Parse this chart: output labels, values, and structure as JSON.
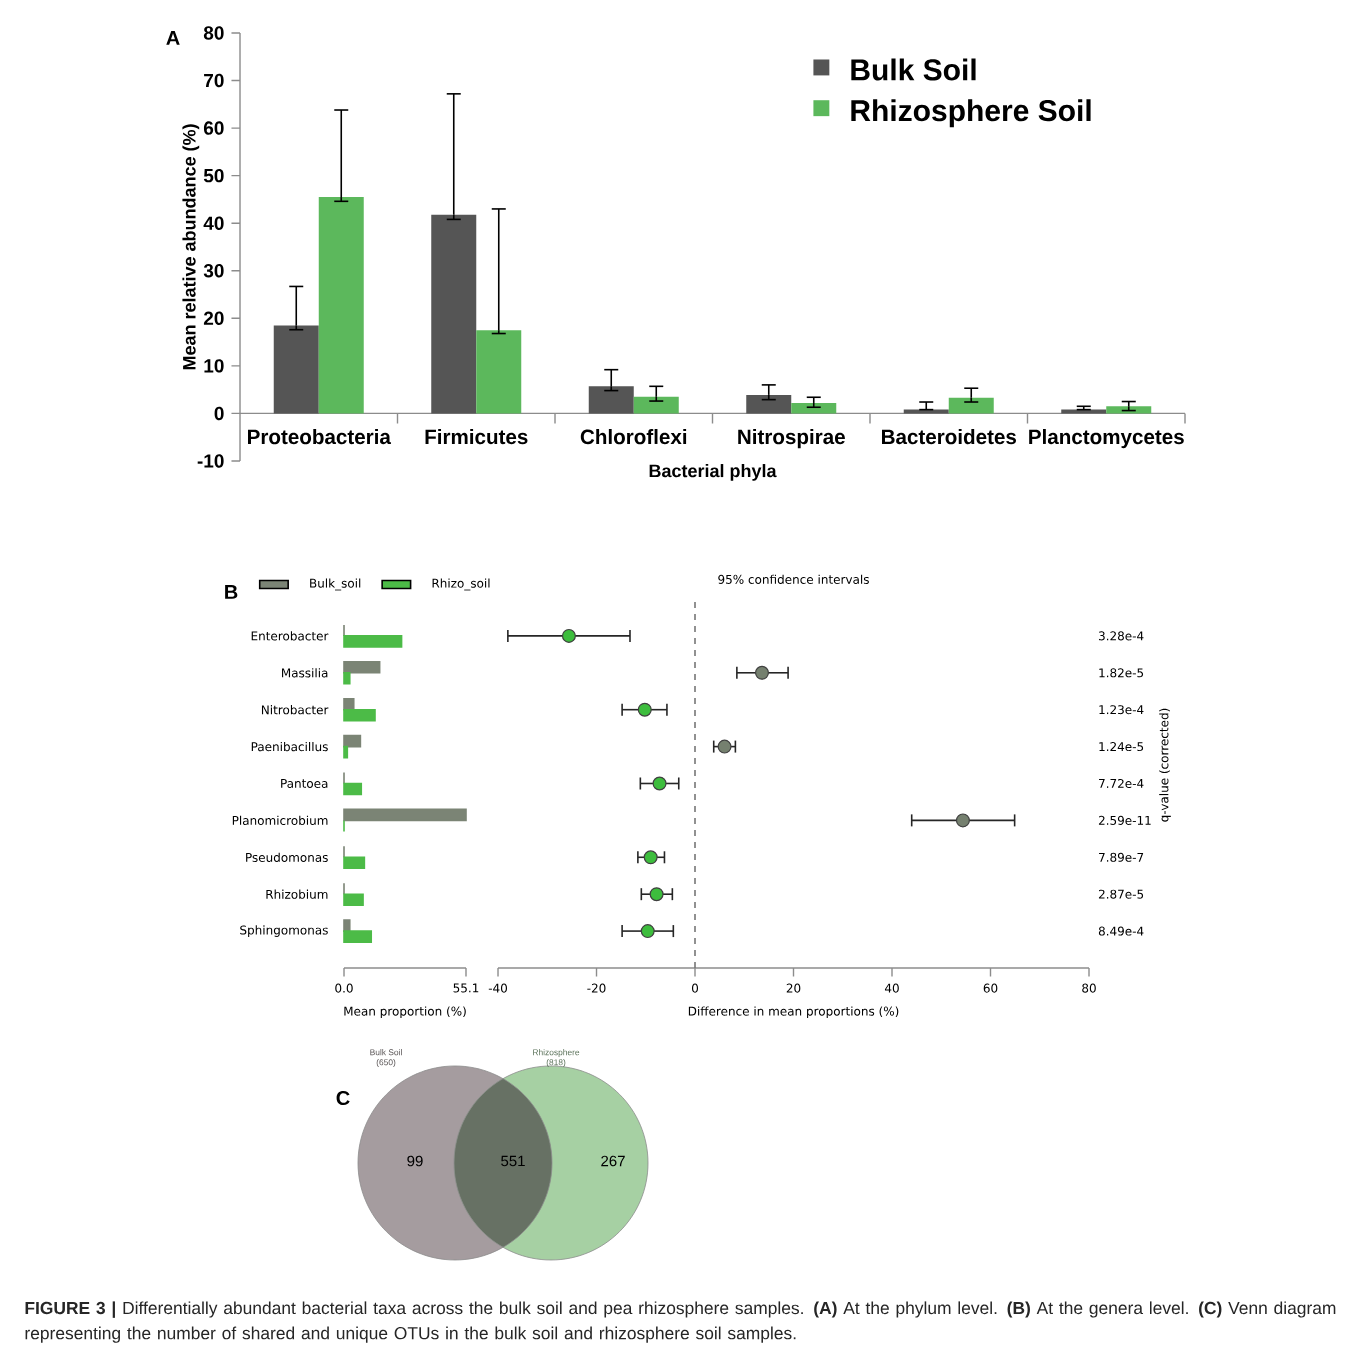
{
  "chart_data": [
    {
      "type": "bar",
      "xlabel": "Bacterial phyla",
      "ylabel": "Mean relative abundance (%)",
      "categories": [
        "Proteobacteria",
        "Firmicutes",
        "Chloroflexi",
        "Nitrospirae",
        "Bacteroidetes",
        "Planctomycetes"
      ],
      "ylim": [
        -10,
        80
      ],
      "yticks": [
        -10,
        0,
        10,
        20,
        30,
        40,
        50,
        60,
        70,
        80
      ],
      "legend": "top right",
      "annotations": [
        "A"
      ],
      "series": [
        {
          "name": "Bulk Soil",
          "color": "#555555",
          "values": [
            18.5,
            41.8,
            5.7,
            3.9,
            0.8,
            0.8
          ],
          "errors": [
            [
              17.6,
              26.7
            ],
            [
              40.8,
              67.2
            ],
            [
              4.8,
              9.2
            ],
            [
              2.9,
              6.0
            ],
            [
              0.8,
              2.4
            ],
            [
              0.8,
              1.5
            ]
          ]
        },
        {
          "name": "Rhizosphere Soil",
          "color": "#5cb85c",
          "values": [
            45.5,
            17.5,
            3.5,
            2.2,
            3.3,
            1.5
          ],
          "errors": [
            [
              44.6,
              63.8
            ],
            [
              16.8,
              43.0
            ],
            [
              2.6,
              5.7
            ],
            [
              1.3,
              3.4
            ],
            [
              2.4,
              5.3
            ],
            [
              0.6,
              2.5
            ]
          ]
        }
      ]
    },
    {
      "type": "bar",
      "orientation": "horizontal",
      "xlabel": "Mean proportion (%)",
      "categories": [
        "Enterobacter",
        "Massilia",
        "Nitrobacter",
        "Paenibacillus",
        "Pantoea",
        "Planomicrobium",
        "Pseudomonas",
        "Rhizobium",
        "Sphingomonas"
      ],
      "xlim": [
        0,
        55.1
      ],
      "xticks": [
        {
          "value": 0,
          "label": "0.0"
        },
        55.1
      ],
      "legend": "top left",
      "annotations": [
        "B"
      ],
      "series": [
        {
          "name": "Bulk_soil",
          "color": "#7b8475",
          "values": [
            0,
            16.1,
            4.4,
            7.4,
            0,
            55.1,
            0,
            0,
            2.6
          ]
        },
        {
          "name": "Rhizo_soil",
          "color": "#4cbb47",
          "values": [
            26.0,
            2.6,
            14.0,
            1.5,
            7.8,
            0,
            9.2,
            8.6,
            12.3
          ]
        }
      ]
    },
    {
      "type": "scatter",
      "orientation": "horizontal",
      "title": "95% confidence intervals",
      "xlabel": "Difference in mean proportions (%)",
      "y2label": "q-value (corrected)",
      "categories": [
        null,
        null,
        null,
        null,
        null,
        null,
        null,
        null,
        null
      ],
      "xlim": [
        -40,
        80
      ],
      "xticks": [
        -40,
        -20,
        0,
        20,
        40,
        60,
        80
      ],
      "marker": "circle",
      "values": [
        -25.6,
        13.6,
        -10.2,
        6.0,
        -7.2,
        54.4,
        -9.0,
        -7.8,
        -9.6
      ],
      "errors": [
        [
          -38.0,
          -13.2
        ],
        [
          8.5,
          18.9
        ],
        [
          -14.8,
          -5.7
        ],
        [
          3.8,
          8.2
        ],
        [
          -11.1,
          -3.3
        ],
        [
          44.0,
          64.9
        ],
        [
          -11.6,
          -6.2
        ],
        [
          -10.9,
          -4.6
        ],
        [
          -14.8,
          -4.4
        ]
      ],
      "colors": [
        "#3dbd3d",
        "#75806f",
        "#3dbd3d",
        "#75806f",
        "#3dbd3d",
        "#75806f",
        "#3dbd3d",
        "#3dbd3d",
        "#3dbd3d"
      ],
      "ref_lines": [
        {
          "axis": "x",
          "value": 0,
          "line_style": "dashed",
          "color": "#777777"
        }
      ],
      "annotations": [
        "3.28e-4",
        "1.82e-5",
        "1.23e-4",
        "1.24e-5",
        "7.72e-4",
        "2.59e-11",
        "7.89e-7",
        "2.87e-5",
        "8.49e-4"
      ]
    },
    {
      "type": "other",
      "categories": [
        "Bulk Soil",
        "Rhizosphere"
      ],
      "value_labels": [
        "(650)",
        "(818)"
      ],
      "colors": [
        "#a59c9f",
        "#a6d0a3"
      ],
      "annotations": [
        "C",
        "99",
        "551",
        "267",
        "**FIGURE 3 |** Differentially abundant bacterial taxa across the bulk soil and pea rhizosphere samples. **(A)** At the phylum level. **(B)** At the genera level. **(C)** Venn diagram representing the number of shared and unique OTUs in the bulk soil and rhizosphere soil samples."
      ]
    }
  ]
}
